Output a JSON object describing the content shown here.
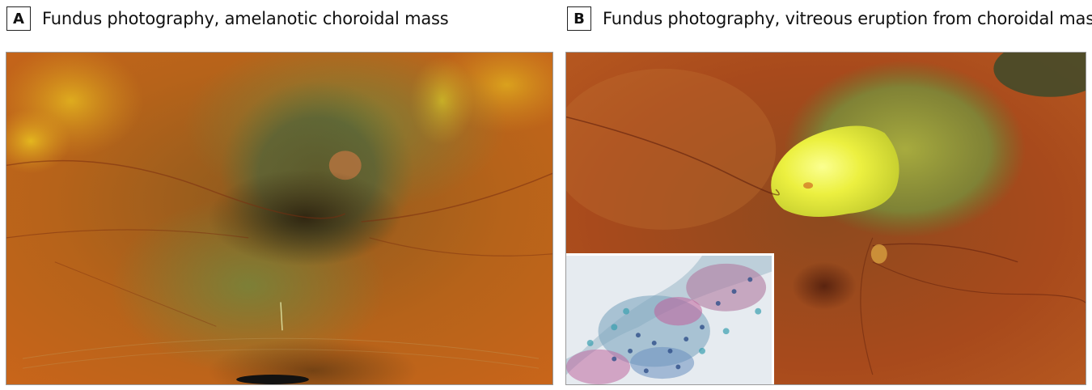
{
  "panels": [
    {
      "letter": "A",
      "caption": "Fundus photography, amelanotic choroidal mass"
    },
    {
      "letter": "B",
      "caption": "Fundus photography, vitreous eruption from choroidal mass"
    }
  ]
}
